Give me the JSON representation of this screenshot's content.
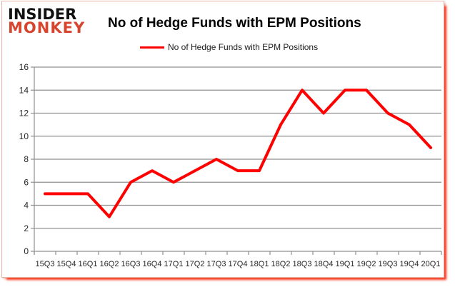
{
  "branding": {
    "logo_line1": "INSIDER",
    "logo_line2": "MONKEY",
    "logo_color_line1": "#111111",
    "logo_color_line2": "#d8452e"
  },
  "header": {
    "title": "No of Hedge Funds with EPM Positions"
  },
  "legend": {
    "label": "No of Hedge Funds with EPM Positions",
    "line_color": "#ff0000"
  },
  "chart_data": {
    "type": "line",
    "title": "No of Hedge Funds with EPM Positions",
    "categories": [
      "15Q3",
      "15Q4",
      "16Q1",
      "16Q2",
      "16Q3",
      "16Q4",
      "17Q1",
      "17Q2",
      "17Q3",
      "17Q4",
      "18Q1",
      "18Q2",
      "18Q3",
      "18Q4",
      "19Q1",
      "19Q2",
      "19Q3",
      "19Q4",
      "20Q1"
    ],
    "series": [
      {
        "name": "No of Hedge Funds with EPM Positions",
        "color": "#ff0000",
        "values": [
          5,
          5,
          5,
          3,
          6,
          7,
          6,
          7,
          8,
          7,
          7,
          11,
          14,
          12,
          14,
          14,
          12,
          11,
          9
        ]
      }
    ],
    "xlabel": "",
    "ylabel": "",
    "ylim": [
      0,
      16
    ],
    "ytick_step": 2,
    "yticks": [
      0,
      2,
      4,
      6,
      8,
      10,
      12,
      14,
      16
    ],
    "grid": true,
    "gridline_color": "#8f8f8f",
    "legend_position": "top"
  }
}
